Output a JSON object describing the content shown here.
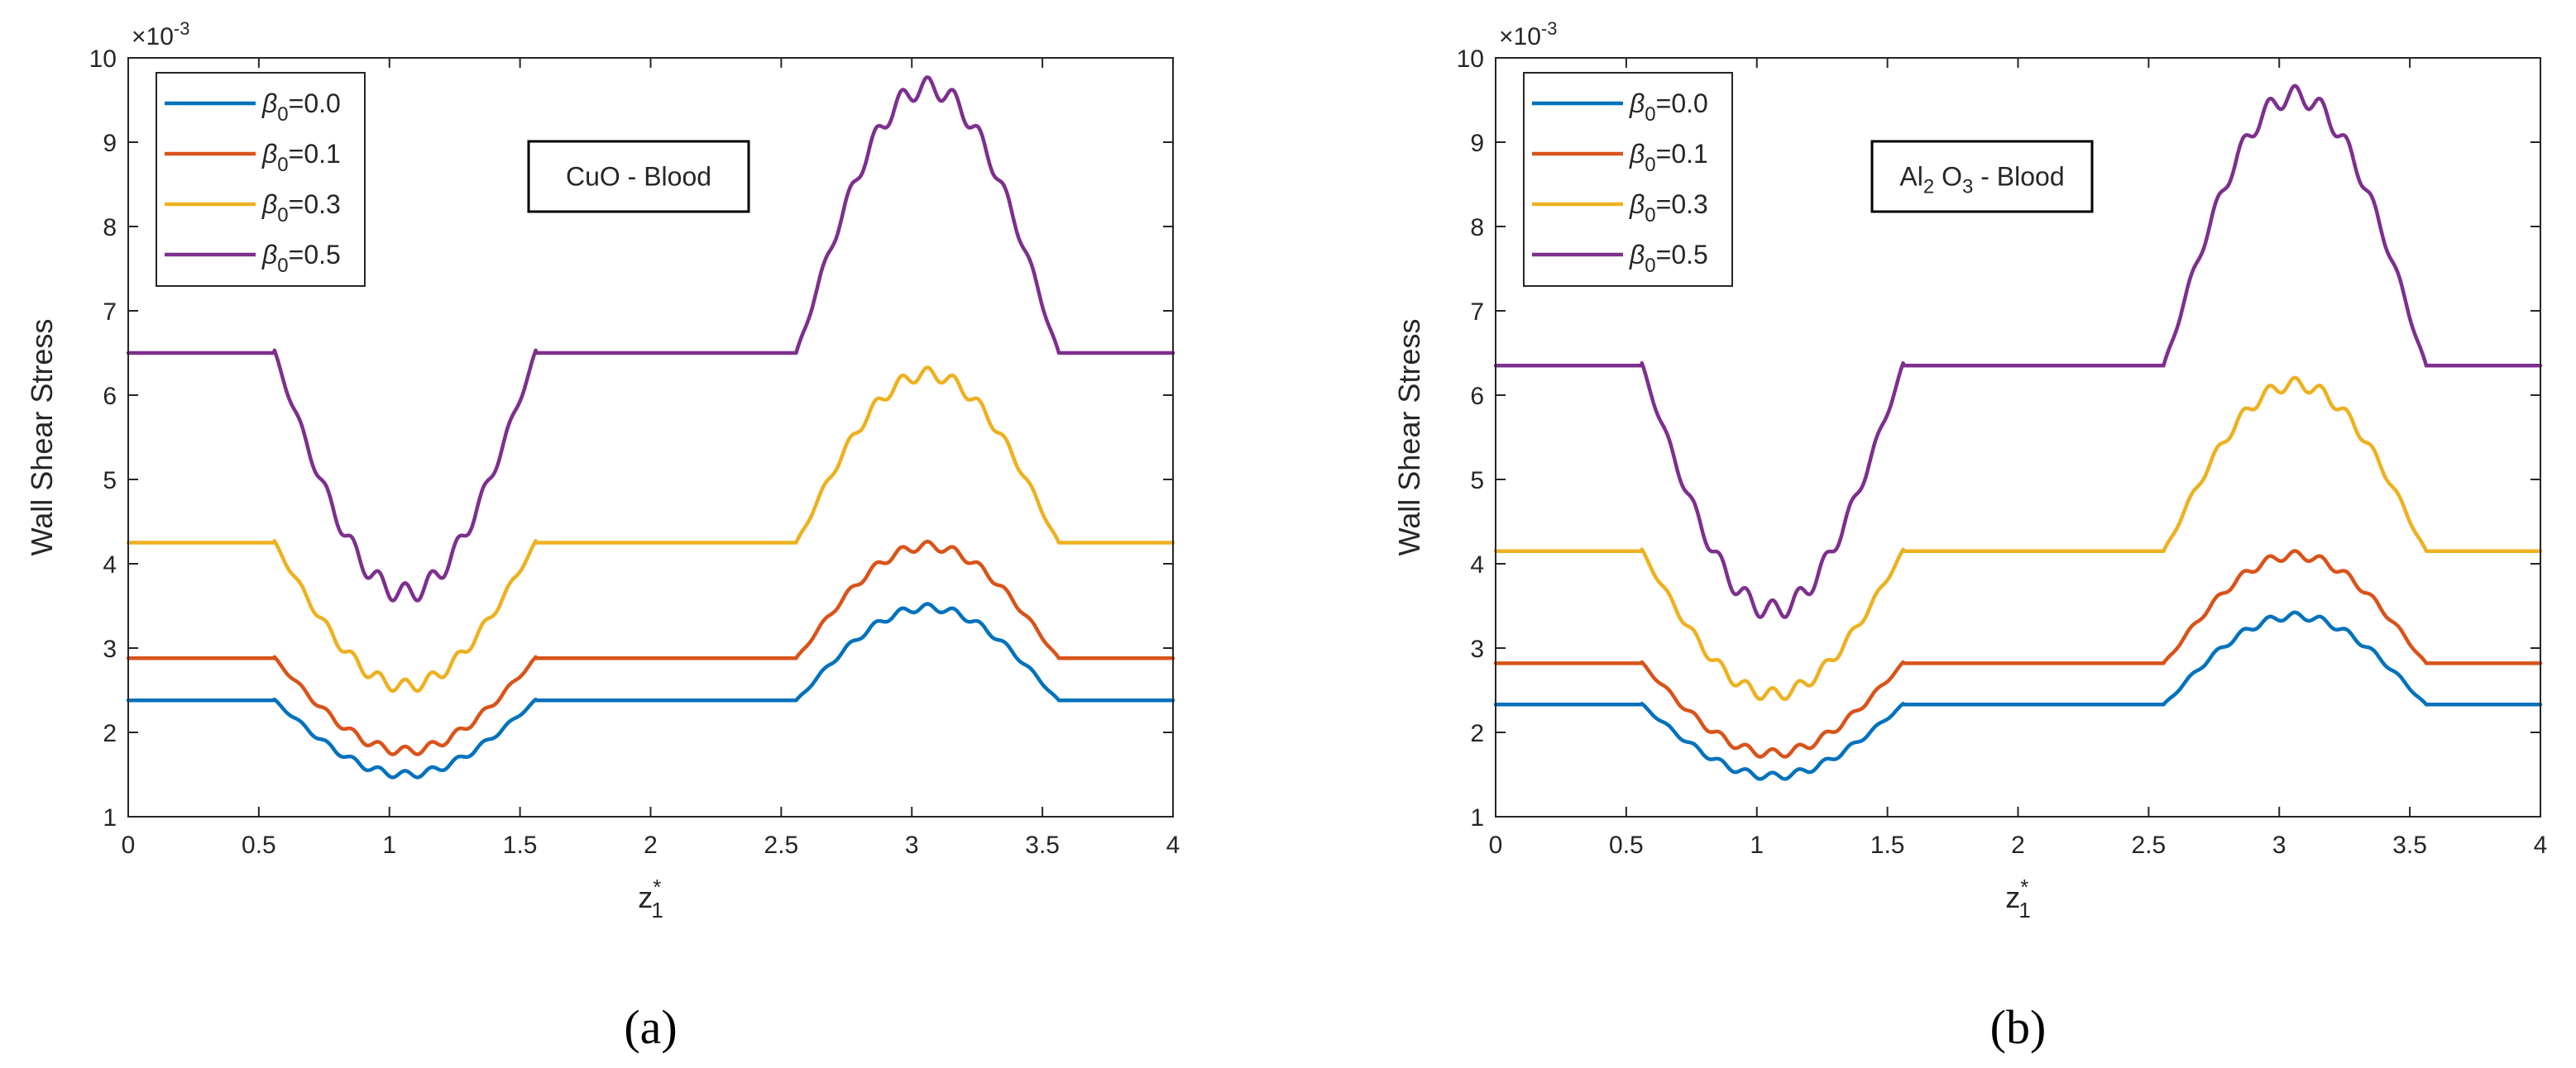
{
  "chart_data": [
    {
      "panel_label": "(a)",
      "type": "line",
      "xlabel": "z",
      "xlabel_sup": "*",
      "xlabel_sub": "1",
      "ylabel": "Wall Shear Stress",
      "y_exponent": {
        "base": "×10",
        "power": "-3"
      },
      "xlim": [
        0,
        4
      ],
      "ylim": [
        1,
        10
      ],
      "xticks": [
        "0",
        "0.5",
        "1",
        "1.5",
        "2",
        "2.5",
        "3",
        "3.5",
        "4"
      ],
      "yticks": [
        "1",
        "2",
        "3",
        "4",
        "5",
        "6",
        "7",
        "8",
        "9",
        "10"
      ],
      "grid": false,
      "legend_position": "top-left",
      "annotation": {
        "parts": [
          "CuO - Blood"
        ]
      },
      "stenosis_regions": [
        [
          0.56,
          1.56
        ],
        [
          2.56,
          3.56
        ]
      ],
      "series": [
        {
          "name": "β0=0.0",
          "label_main": "β",
          "label_sub": "0",
          "label_rest": "=0.0",
          "color": "#0072BD",
          "base": 2.38,
          "dip": 0.88,
          "peak": 1.1
        },
        {
          "name": "β0=0.1",
          "label_main": "β",
          "label_sub": "0",
          "label_rest": "=0.1",
          "color": "#D95319",
          "base": 2.88,
          "dip": 1.1,
          "peak": 1.33
        },
        {
          "name": "β0=0.3",
          "label_main": "β",
          "label_sub": "0",
          "label_rest": "=0.3",
          "color": "#EDB120",
          "base": 4.25,
          "dip": 1.7,
          "peak": 2.0
        },
        {
          "name": "β0=0.5",
          "label_main": "β",
          "label_sub": "0",
          "label_rest": "=0.5",
          "color": "#7E2F8E",
          "base": 6.5,
          "dip": 2.85,
          "peak": 3.15
        }
      ]
    },
    {
      "panel_label": "(b)",
      "type": "line",
      "xlabel": "z",
      "xlabel_sup": "*",
      "xlabel_sub": "1",
      "ylabel": "Wall Shear Stress",
      "y_exponent": {
        "base": "×10",
        "power": "-3"
      },
      "xlim": [
        0,
        4
      ],
      "ylim": [
        1,
        10
      ],
      "xticks": [
        "0",
        "0.5",
        "1",
        "1.5",
        "2",
        "2.5",
        "3",
        "3.5",
        "4"
      ],
      "yticks": [
        "1",
        "2",
        "3",
        "4",
        "5",
        "6",
        "7",
        "8",
        "9",
        "10"
      ],
      "grid": false,
      "legend_position": "top-left",
      "annotation": {
        "parts": [
          "Al",
          "2",
          " O",
          "3",
          " - Blood"
        ]
      },
      "stenosis_regions": [
        [
          0.56,
          1.56
        ],
        [
          2.56,
          3.56
        ]
      ],
      "series": [
        {
          "name": "β0=0.0",
          "label_main": "β",
          "label_sub": "0",
          "label_rest": "=0.0",
          "color": "#0072BD",
          "base": 2.33,
          "dip": 0.85,
          "peak": 1.05
        },
        {
          "name": "β0=0.1",
          "label_main": "β",
          "label_sub": "0",
          "label_rest": "=0.1",
          "color": "#D95319",
          "base": 2.82,
          "dip": 1.07,
          "peak": 1.28
        },
        {
          "name": "β0=0.3",
          "label_main": "β",
          "label_sub": "0",
          "label_rest": "=0.3",
          "color": "#EDB120",
          "base": 4.15,
          "dip": 1.7,
          "peak": 1.98
        },
        {
          "name": "β0=0.5",
          "label_main": "β",
          "label_sub": "0",
          "label_rest": "=0.5",
          "color": "#7E2F8E",
          "base": 6.35,
          "dip": 2.9,
          "peak": 3.2
        }
      ]
    }
  ]
}
